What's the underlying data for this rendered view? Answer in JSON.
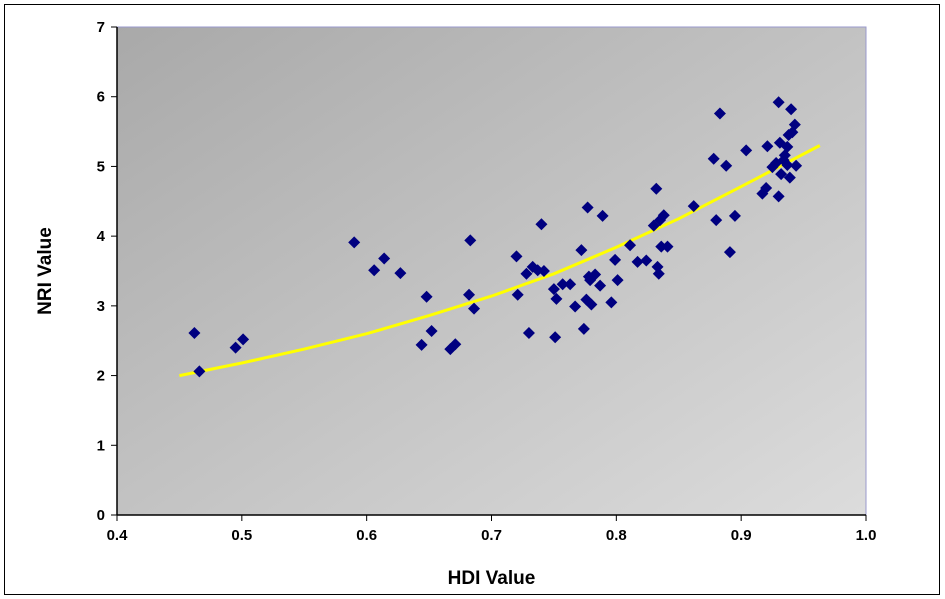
{
  "chart_data": {
    "type": "scatter",
    "title": "",
    "xlabel": "HDI Value",
    "ylabel": "NRI Value",
    "xlim": [
      0.4,
      1.0
    ],
    "ylim": [
      0,
      7
    ],
    "x_ticks": [
      "0.4",
      "0.5",
      "0.6",
      "0.7",
      "0.8",
      "0.9",
      "1.0"
    ],
    "y_ticks": [
      "0",
      "1",
      "2",
      "3",
      "4",
      "5",
      "6",
      "7"
    ],
    "grid": false,
    "legend": "none",
    "colors": {
      "plot_area_top_left": "#a9a9a9",
      "plot_area_bottom_right": "#dcdcdc",
      "plot_border": "#9999cc",
      "marker": "#000080",
      "trendline": "#ffff00"
    },
    "series": [
      {
        "marker": "diamond",
        "x": [
          0.462,
          0.466,
          0.495,
          0.501,
          0.59,
          0.606,
          0.614,
          0.627,
          0.644,
          0.648,
          0.652,
          0.667,
          0.671,
          0.682,
          0.683,
          0.686,
          0.72,
          0.721,
          0.728,
          0.73,
          0.733,
          0.737,
          0.74,
          0.742,
          0.75,
          0.751,
          0.752,
          0.757,
          0.763,
          0.767,
          0.772,
          0.774,
          0.776,
          0.777,
          0.778,
          0.779,
          0.78,
          0.783,
          0.787,
          0.789,
          0.796,
          0.799,
          0.801,
          0.811,
          0.817,
          0.824,
          0.83,
          0.832,
          0.833,
          0.834,
          0.835,
          0.836,
          0.838,
          0.841,
          0.862,
          0.878,
          0.88,
          0.883,
          0.888,
          0.891,
          0.895,
          0.904,
          0.917,
          0.92,
          0.921,
          0.925,
          0.928,
          0.93,
          0.93,
          0.931,
          0.932,
          0.934,
          0.935,
          0.937,
          0.937,
          0.938,
          0.939,
          0.94,
          0.941,
          0.943,
          0.944
        ],
        "y": [
          2.61,
          2.06,
          2.4,
          2.52,
          3.91,
          3.51,
          3.68,
          3.47,
          2.44,
          3.13,
          2.64,
          2.38,
          2.45,
          3.16,
          3.94,
          2.96,
          3.71,
          3.16,
          3.46,
          2.61,
          3.56,
          3.51,
          4.17,
          3.5,
          3.24,
          2.55,
          3.1,
          3.31,
          3.31,
          2.99,
          3.8,
          2.67,
          3.09,
          4.41,
          3.42,
          3.37,
          3.02,
          3.45,
          3.29,
          4.29,
          3.05,
          3.66,
          3.37,
          3.87,
          3.63,
          3.65,
          4.15,
          4.68,
          3.56,
          3.46,
          4.23,
          3.85,
          4.3,
          3.85,
          4.43,
          5.11,
          4.23,
          5.76,
          5.01,
          3.77,
          4.29,
          5.23,
          4.61,
          4.69,
          5.29,
          4.99,
          5.05,
          4.57,
          5.92,
          5.34,
          4.89,
          5.09,
          5.16,
          5.02,
          5.28,
          5.45,
          4.84,
          5.82,
          5.49,
          5.6,
          5.01
        ]
      }
    ],
    "trendline": {
      "type": "polynomial",
      "x": [
        0.45,
        0.5,
        0.55,
        0.6,
        0.65,
        0.7,
        0.75,
        0.8,
        0.85,
        0.9,
        0.963
      ],
      "y": [
        2.0,
        2.18,
        2.38,
        2.6,
        2.86,
        3.14,
        3.46,
        3.84,
        4.25,
        4.71,
        5.3
      ]
    }
  }
}
